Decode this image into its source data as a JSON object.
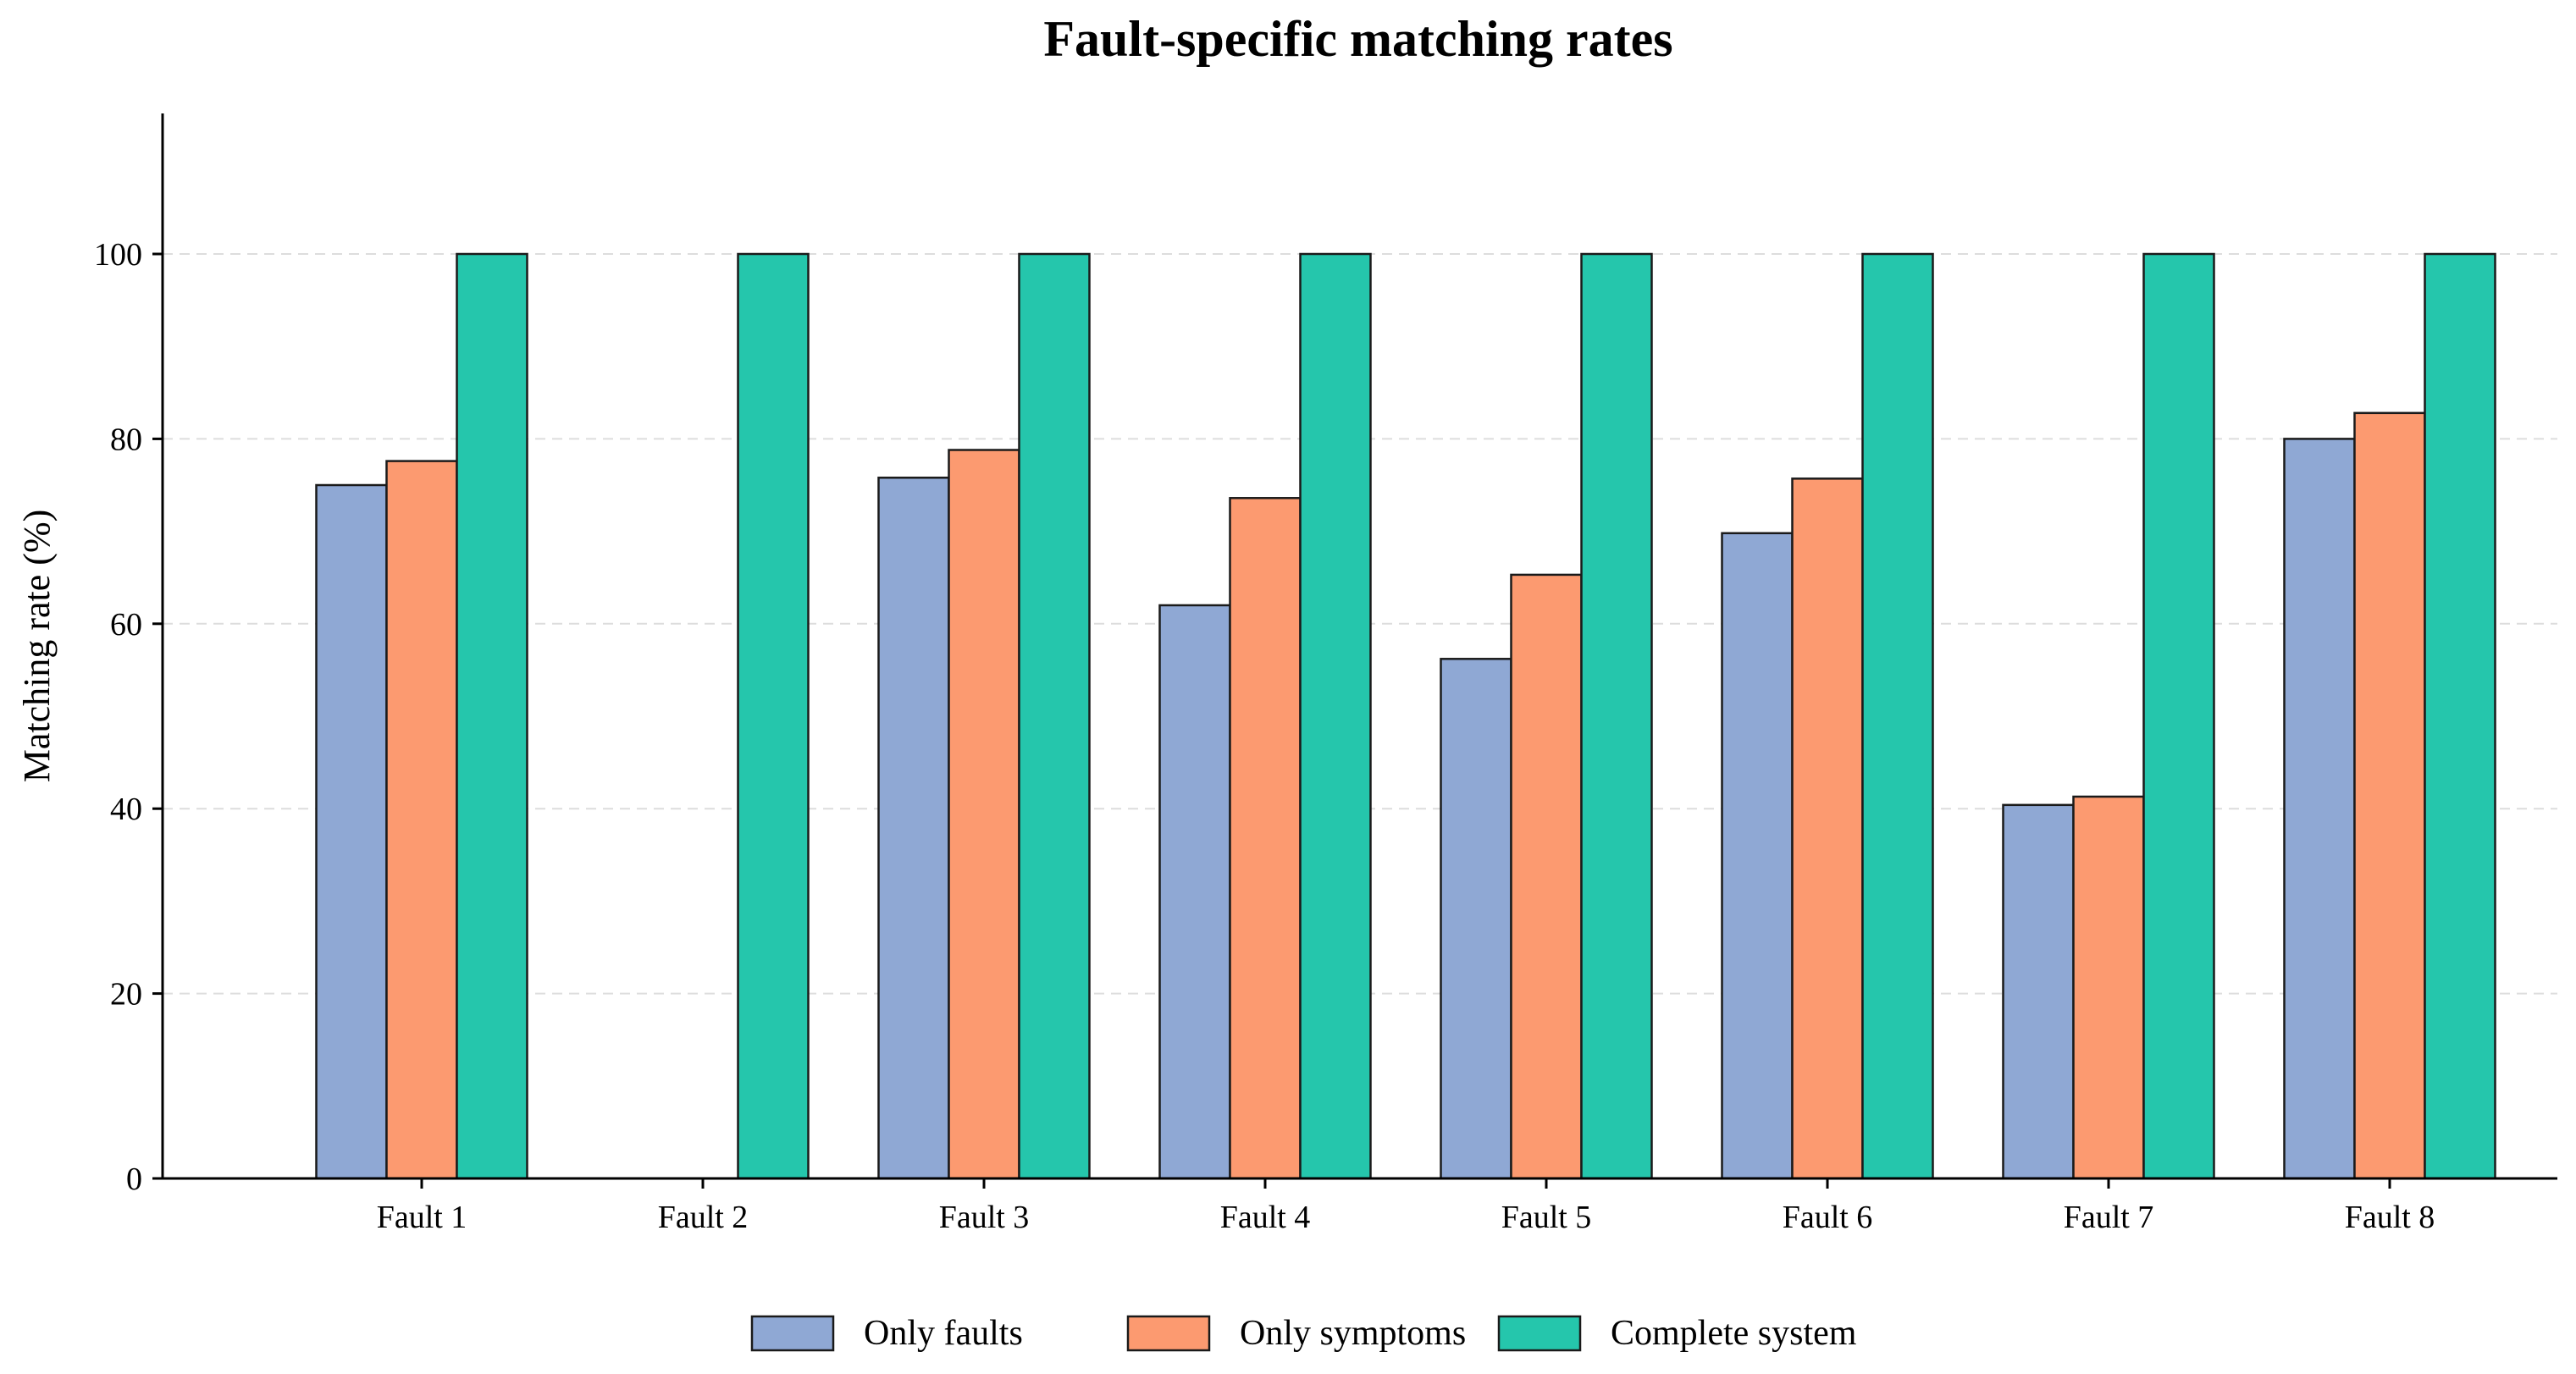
{
  "chart_data": {
    "type": "bar",
    "title": "Fault-specific matching rates",
    "xlabel": "",
    "ylabel": "Matching rate (%)",
    "ylim": [
      0,
      115
    ],
    "yticks": [
      0,
      20,
      40,
      60,
      80,
      100
    ],
    "grid": "horizontal dashed",
    "legend_position": "bottom-center",
    "categories": [
      "Fault 1",
      "Fault 2",
      "Fault 3",
      "Fault 4",
      "Fault 5",
      "Fault 6",
      "Fault 7",
      "Fault 8"
    ],
    "series": [
      {
        "name": "Only faults",
        "color": "#8FA8D4",
        "values": [
          75.0,
          0,
          75.8,
          62.0,
          56.2,
          69.8,
          40.4,
          80.0
        ]
      },
      {
        "name": "Only symptoms",
        "color": "#FC9A70",
        "values": [
          77.6,
          0,
          78.8,
          73.6,
          65.3,
          75.7,
          41.3,
          82.8
        ]
      },
      {
        "name": "Complete system",
        "color": "#25C6AC",
        "values": [
          100,
          100,
          100,
          100,
          100,
          100,
          100,
          100
        ]
      }
    ]
  }
}
